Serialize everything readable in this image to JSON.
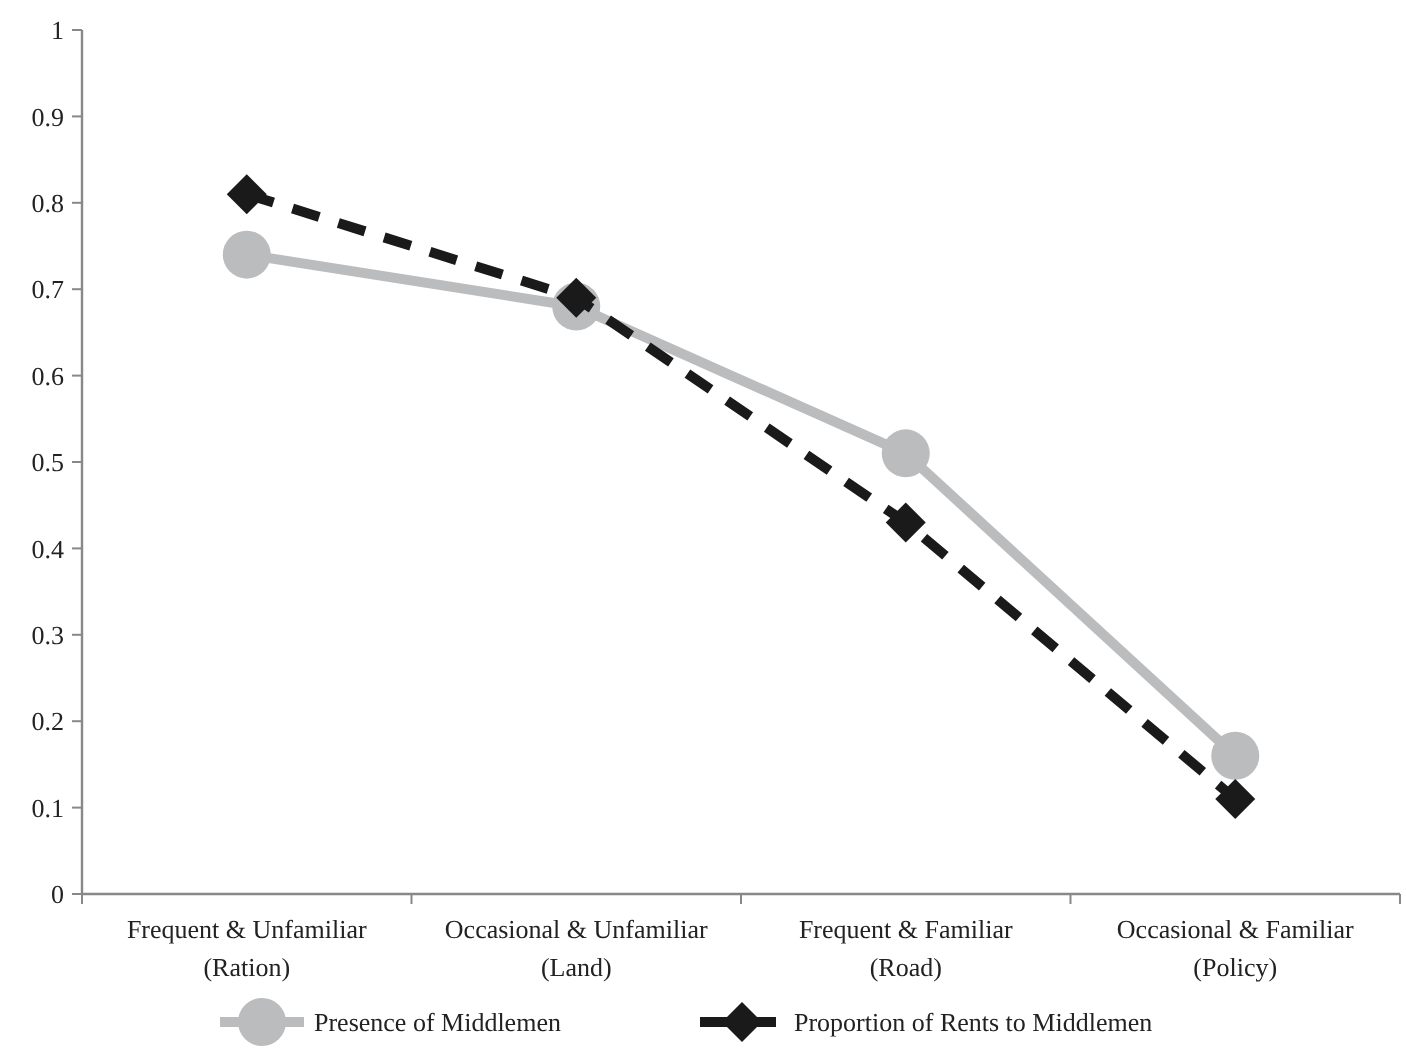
{
  "chart_data": {
    "type": "line",
    "categories": [
      "Frequent & Unfamiliar\n(Ration)",
      "Occasional & Unfamiliar\n(Land)",
      "Frequent & Familiar\n(Road)",
      "Occasional & Familiar\n(Policy)"
    ],
    "series": [
      {
        "name": "Presence of Middlemen",
        "color": "#bbbcbe",
        "values": [
          0.74,
          0.68,
          0.51,
          0.16
        ],
        "marker": "circle",
        "line_style": "solid"
      },
      {
        "name": "Proportion of Rents to Middlemen",
        "color": "#1a1a1a",
        "values": [
          0.81,
          0.69,
          0.43,
          0.11
        ],
        "marker": "diamond",
        "line_style": "dashed"
      }
    ],
    "ylim": [
      0,
      1
    ],
    "yticks": [
      0,
      0.1,
      0.2,
      0.3,
      0.4,
      0.5,
      0.6,
      0.7,
      0.8,
      0.9,
      1
    ],
    "grid": false,
    "legend": "bottom"
  }
}
